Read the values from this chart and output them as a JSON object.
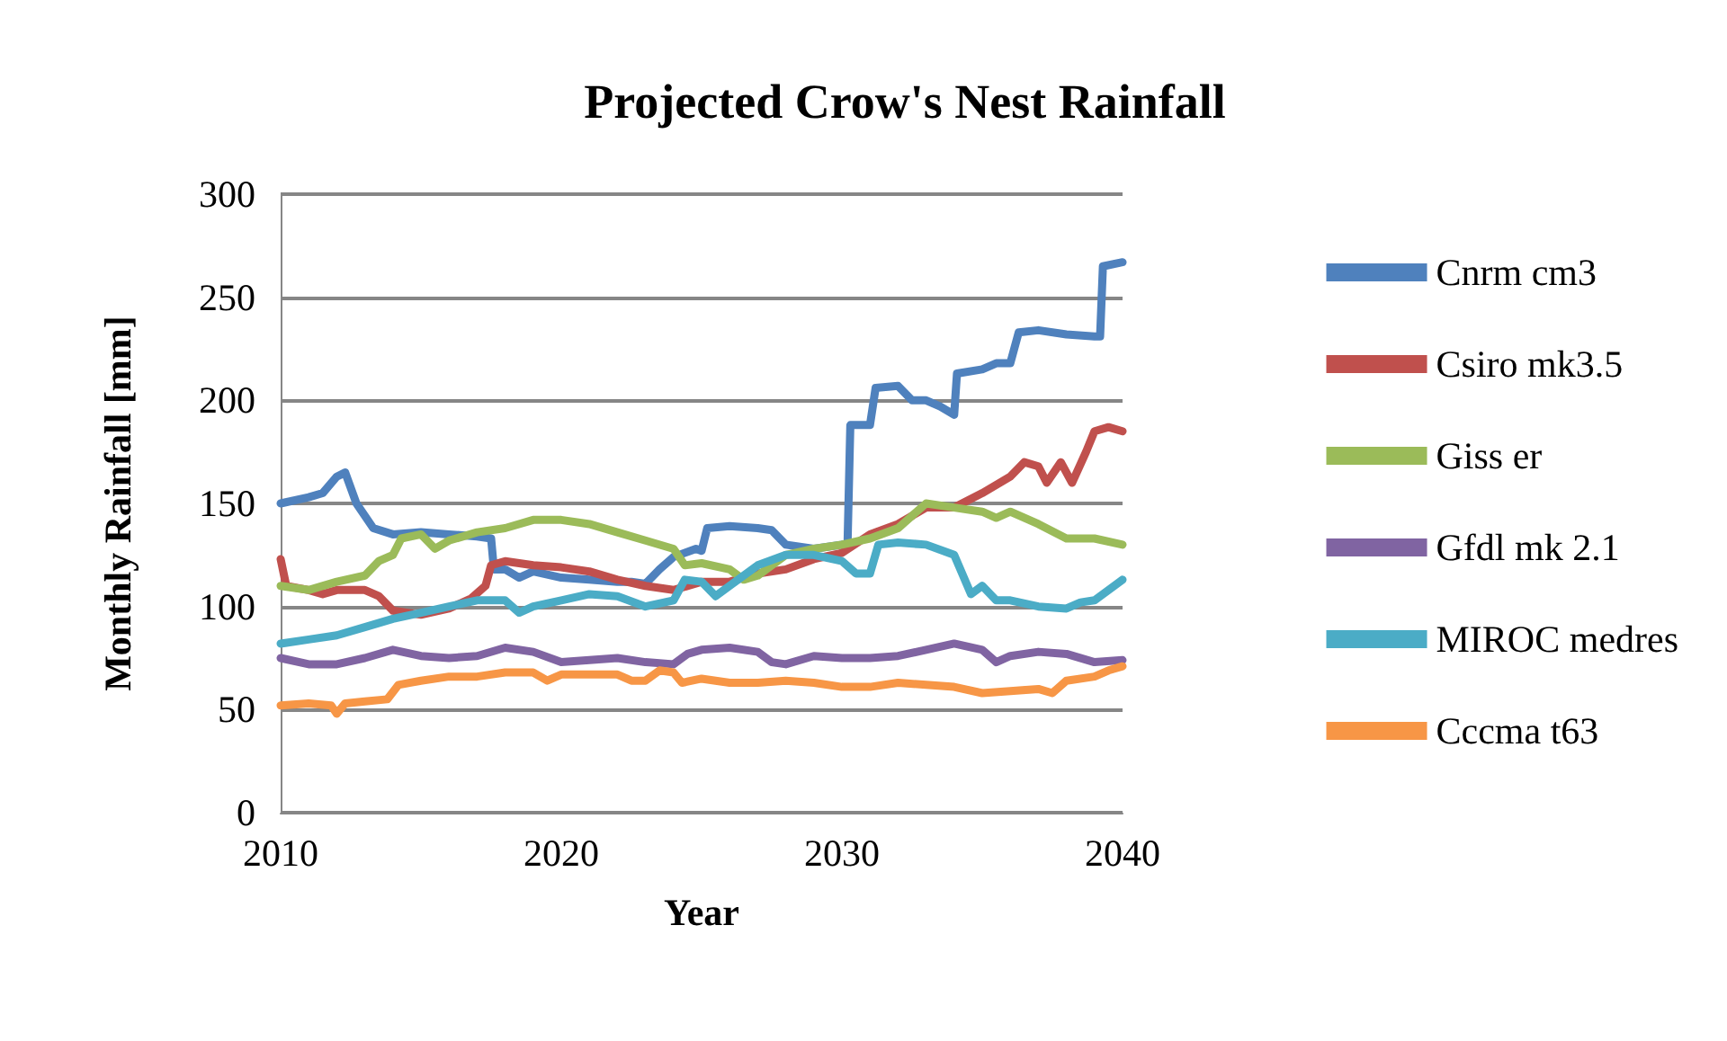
{
  "chart_data": {
    "type": "line",
    "title": "Projected Crow's Nest Rainfall",
    "xlabel": "Year",
    "ylabel": "Monthly Rainfall [mm]",
    "xlim": [
      2010,
      2040
    ],
    "xticks": [
      2010,
      2020,
      2030,
      2040
    ],
    "ylim": [
      0,
      300
    ],
    "yticks": [
      0,
      50,
      100,
      150,
      200,
      250,
      300
    ],
    "grid": "y",
    "legend": "right",
    "marker": "none",
    "line_style": "solid",
    "series": [
      {
        "name": "Cnrm cm3",
        "color": "#4f81bd",
        "x": [
          2010,
          2011,
          2011.5,
          2012,
          2012.3,
          2012.7,
          2013.3,
          2014,
          2015,
          2016,
          2017,
          2017.5,
          2017.6,
          2018,
          2018.5,
          2019,
          2020,
          2021,
          2022,
          2022.5,
          2023,
          2023.5,
          2024,
          2024.8,
          2025,
          2025.2,
          2026,
          2027,
          2027.5,
          2028,
          2029,
          2030,
          2030.2,
          2030.3,
          2031,
          2031.2,
          2032,
          2032.5,
          2033,
          2033.5,
          2034,
          2034.1,
          2035,
          2035.5,
          2036,
          2036.3,
          2037,
          2038,
          2039,
          2039.2,
          2039.3,
          2040
        ],
        "values": [
          150,
          153,
          155,
          163,
          165,
          150,
          138,
          135,
          136,
          135,
          134,
          133,
          118,
          118,
          114,
          117,
          114,
          113,
          112,
          112,
          111,
          118,
          124,
          128,
          127,
          138,
          139,
          138,
          137,
          130,
          128,
          130,
          130,
          188,
          188,
          206,
          207,
          200,
          200,
          197,
          193,
          213,
          215,
          218,
          218,
          233,
          234,
          232,
          231,
          231,
          265,
          267
        ]
      },
      {
        "name": "Csiro mk3.5",
        "color": "#c0504d",
        "x": [
          2010,
          2010.2,
          2011,
          2011.5,
          2012,
          2013,
          2013.5,
          2014,
          2015,
          2016,
          2016.8,
          2017.3,
          2017.5,
          2018,
          2019,
          2020,
          2021,
          2022,
          2023,
          2024,
          2025,
          2026,
          2027,
          2028,
          2029,
          2030,
          2031,
          2032,
          2033,
          2034,
          2035,
          2036,
          2036.5,
          2037,
          2037.3,
          2037.8,
          2038.2,
          2038.7,
          2039,
          2039.5,
          2040
        ],
        "values": [
          123,
          110,
          108,
          106,
          108,
          108,
          105,
          98,
          96,
          99,
          104,
          110,
          120,
          122,
          120,
          119,
          117,
          113,
          110,
          108,
          112,
          112,
          116,
          118,
          123,
          126,
          135,
          140,
          148,
          148,
          155,
          163,
          170,
          168,
          160,
          170,
          160,
          175,
          185,
          187,
          185
        ]
      },
      {
        "name": "Giss er",
        "color": "#9bbb59",
        "x": [
          2010,
          2011,
          2012,
          2013,
          2013.5,
          2014,
          2014.3,
          2015,
          2015.5,
          2016,
          2017,
          2018,
          2019,
          2020,
          2021,
          2022,
          2023,
          2024,
          2024.4,
          2025,
          2026,
          2026.5,
          2027,
          2028,
          2029,
          2030,
          2031,
          2032,
          2033,
          2034,
          2035,
          2035.5,
          2036,
          2037,
          2038,
          2039,
          2040
        ],
        "values": [
          110,
          108,
          112,
          115,
          122,
          125,
          133,
          135,
          128,
          132,
          136,
          138,
          142,
          142,
          140,
          136,
          132,
          128,
          120,
          121,
          118,
          113,
          115,
          125,
          128,
          130,
          133,
          138,
          150,
          148,
          146,
          143,
          146,
          140,
          133,
          133,
          130
        ]
      },
      {
        "name": "Gfdl mk 2.1",
        "color": "#8064a2",
        "x": [
          2010,
          2011,
          2012,
          2013,
          2014,
          2015,
          2016,
          2017,
          2018,
          2019,
          2020,
          2021,
          2022,
          2023,
          2024,
          2024.5,
          2025,
          2026,
          2027,
          2027.5,
          2028,
          2029,
          2030,
          2031,
          2032,
          2033,
          2034,
          2035,
          2035.5,
          2036,
          2037,
          2038,
          2039,
          2040
        ],
        "values": [
          75,
          72,
          72,
          75,
          79,
          76,
          75,
          76,
          80,
          78,
          73,
          74,
          75,
          73,
          72,
          77,
          79,
          80,
          78,
          73,
          72,
          76,
          75,
          75,
          76,
          79,
          82,
          79,
          73,
          76,
          78,
          77,
          73,
          74
        ]
      },
      {
        "name": "MIROC medres",
        "color": "#4bacc6",
        "x": [
          2010,
          2011,
          2012,
          2013,
          2014,
          2015,
          2016,
          2017,
          2018,
          2018.5,
          2019,
          2020,
          2021,
          2022,
          2023,
          2024,
          2024.4,
          2025,
          2025.5,
          2026,
          2027,
          2028,
          2029,
          2030,
          2030.5,
          2031,
          2031.3,
          2032,
          2033,
          2034,
          2034.6,
          2035,
          2035.5,
          2036,
          2037,
          2038,
          2038.5,
          2039,
          2040
        ],
        "values": [
          82,
          84,
          86,
          90,
          94,
          97,
          100,
          103,
          103,
          97,
          100,
          103,
          106,
          105,
          100,
          103,
          113,
          112,
          105,
          110,
          120,
          125,
          125,
          122,
          116,
          116,
          130,
          131,
          130,
          125,
          106,
          110,
          103,
          103,
          100,
          99,
          102,
          103,
          113
        ]
      },
      {
        "name": "Cccma t63",
        "color": "#f79646",
        "x": [
          2010,
          2011,
          2011.8,
          2012,
          2012.3,
          2013,
          2013.8,
          2014.2,
          2015,
          2016,
          2017,
          2018,
          2019,
          2019.5,
          2020,
          2021,
          2022,
          2022.5,
          2023,
          2023.5,
          2024,
          2024.3,
          2025,
          2026,
          2027,
          2028,
          2029,
          2030,
          2031,
          2032,
          2033,
          2034,
          2035,
          2036,
          2037,
          2037.5,
          2038,
          2039,
          2039.5,
          2040
        ],
        "values": [
          52,
          53,
          52,
          48,
          53,
          54,
          55,
          62,
          64,
          66,
          66,
          68,
          68,
          64,
          67,
          67,
          67,
          64,
          64,
          69,
          68,
          63,
          65,
          63,
          63,
          64,
          63,
          61,
          61,
          63,
          62,
          61,
          58,
          59,
          60,
          58,
          64,
          66,
          69,
          71
        ]
      }
    ]
  }
}
